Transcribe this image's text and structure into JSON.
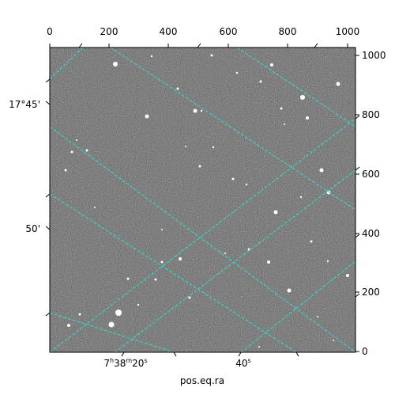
{
  "x_axis_label": "pos.eq.ra",
  "top_ticks": [
    "0",
    "200",
    "400",
    "600",
    "800",
    "1000"
  ],
  "right_ticks": [
    "0",
    "200",
    "400",
    "600",
    "800",
    "1000"
  ],
  "dec_labels": [
    "17°45'",
    "50'"
  ],
  "ra_labels": {
    "first": {
      "h": "7",
      "h_unit": "h",
      "m": "38",
      "m_unit": "m",
      "s": "20",
      "s_unit": "s"
    },
    "second": {
      "s": "40",
      "s_unit": "s"
    }
  },
  "colors": {
    "grid": "#2ee0d0",
    "frame": "#000000",
    "sky": "#6a6a6a"
  }
}
